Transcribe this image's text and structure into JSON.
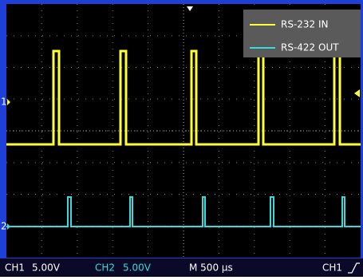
{
  "legend": [
    "RS-232 IN",
    "RS-422 OUT"
  ],
  "channel_markers": [
    "1",
    "2"
  ],
  "status_bar": {
    "ch1_label": "CH1",
    "ch1_scale": "5.00V",
    "ch2_label": "CH2",
    "ch2_scale": "5.00V",
    "timebase": "M 500 µs",
    "trigger": "CH1"
  }
}
